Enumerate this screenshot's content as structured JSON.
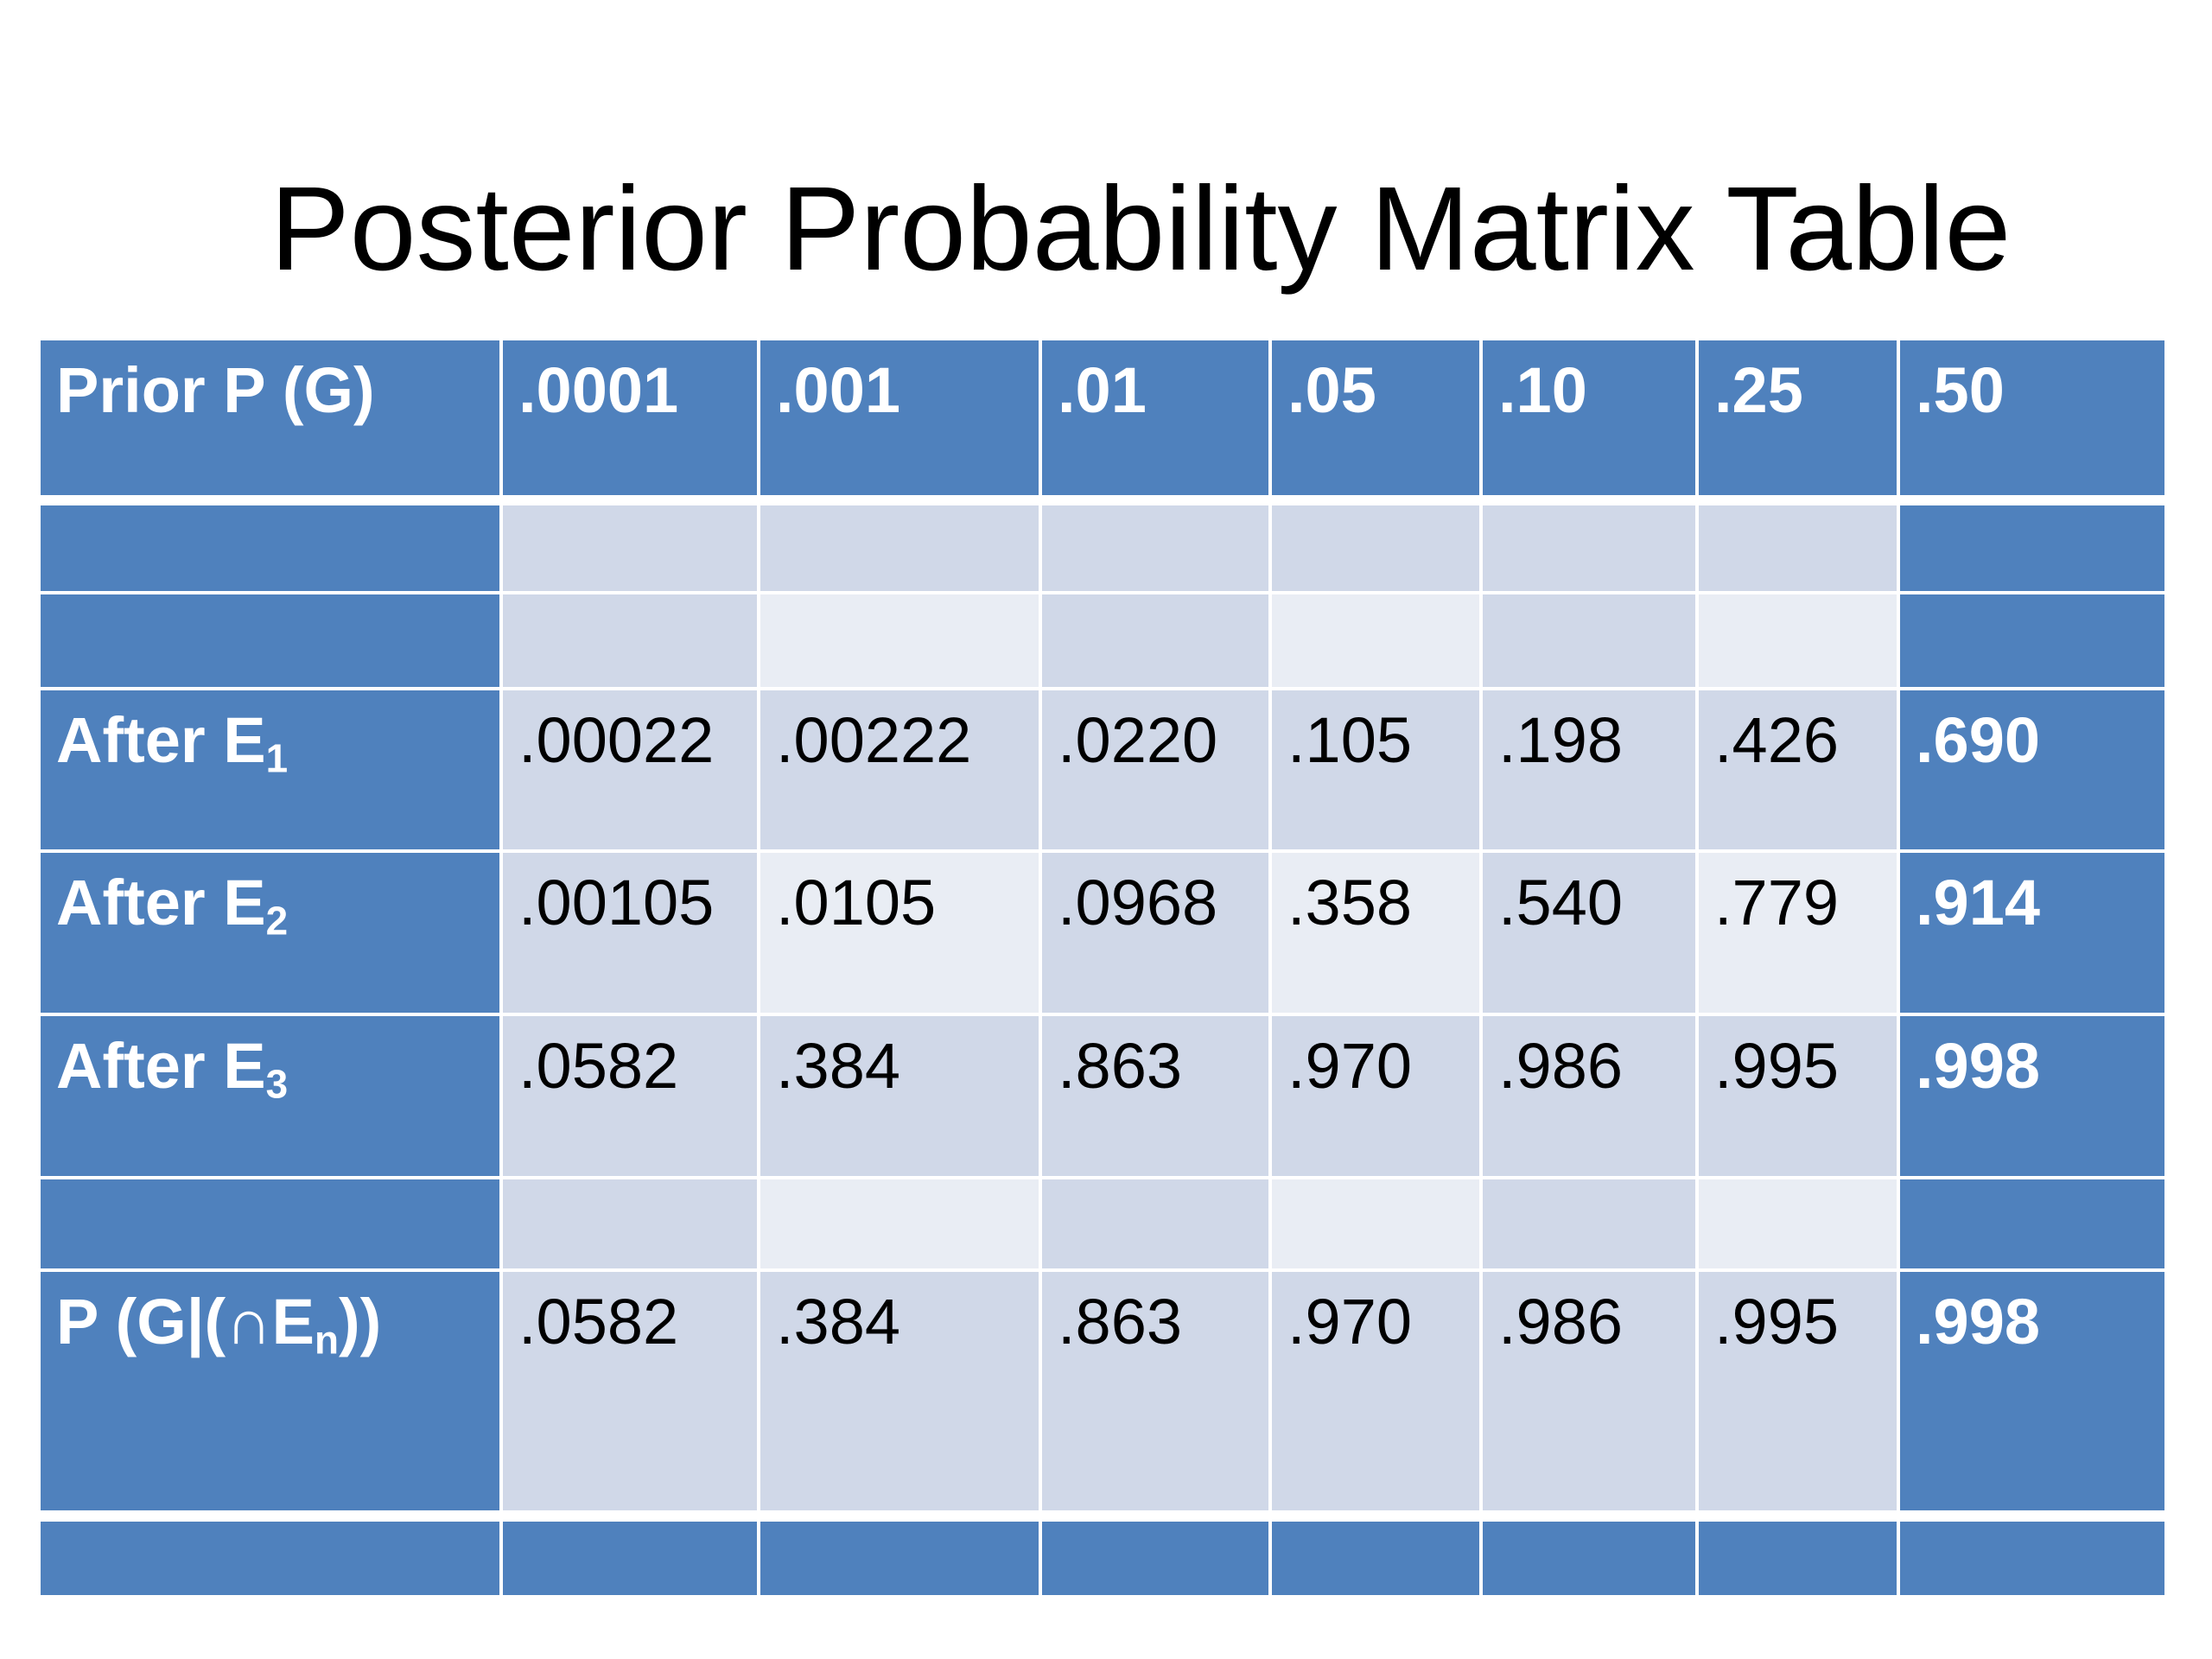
{
  "title": "Posterior Probability Matrix Table",
  "table": {
    "header": [
      "Prior P (G)",
      ".0001",
      ".001",
      ".01",
      ".05",
      ".10",
      ".25",
      ".50"
    ],
    "rows": [
      {
        "label": {
          "main": "After E",
          "sub": "1"
        },
        "cells": [
          ".00022",
          ".00222",
          ".0220",
          ".105",
          ".198",
          ".426",
          ".690"
        ]
      },
      {
        "label": {
          "main": "After E",
          "sub": "2"
        },
        "cells": [
          ".00105",
          ".0105",
          ".0968",
          ".358",
          ".540",
          ".779",
          ".914"
        ]
      },
      {
        "label": {
          "main": "After E",
          "sub": "3"
        },
        "cells": [
          ".0582",
          ".384",
          ".863",
          ".970",
          ".986",
          ".995",
          ".998"
        ]
      },
      {
        "label": {
          "main": "P (G|(∩E",
          "sub": "n",
          "tail": "))"
        },
        "cells": [
          ".0582",
          ".384",
          ".863",
          ".970",
          ".986",
          ".995",
          ".998"
        ]
      }
    ]
  }
}
